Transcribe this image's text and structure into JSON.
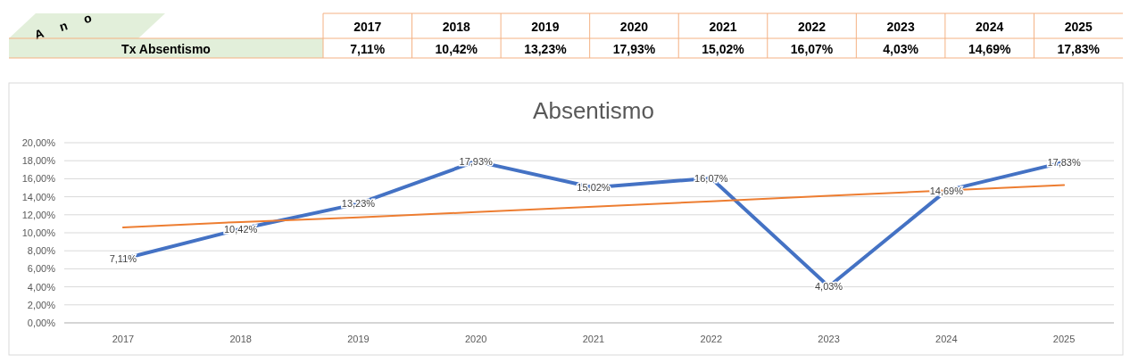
{
  "chart_data": {
    "type": "line",
    "title": "Absentismo",
    "categories": [
      "2017",
      "2018",
      "2019",
      "2020",
      "2021",
      "2022",
      "2023",
      "2024",
      "2025"
    ],
    "series": [
      {
        "name": "Tx Absentismo",
        "color": "#4472c4",
        "values": [
          7.11,
          10.42,
          13.23,
          17.93,
          15.02,
          16.07,
          4.03,
          14.69,
          17.83
        ],
        "value_labels": [
          "7,11%",
          "10,42%",
          "13,23%",
          "17,93%",
          "15,02%",
          "16,07%",
          "4,03%",
          "14,69%",
          "17,83%"
        ]
      },
      {
        "type": "line",
        "color": "#ed7d31",
        "values": [
          10.6,
          11.2,
          11.7,
          12.3,
          12.9,
          13.5,
          14.1,
          14.7,
          15.3
        ]
      }
    ],
    "ylim": [
      0,
      20
    ],
    "yticks": [
      {
        "value": 0,
        "label": "0,00%"
      },
      {
        "value": 2,
        "label": "2,00%"
      },
      {
        "value": 4,
        "label": "4,00%"
      },
      {
        "value": 6,
        "label": "6,00%"
      },
      {
        "value": 8,
        "label": "8,00%"
      },
      {
        "value": 10,
        "label": "10,00%"
      },
      {
        "value": 12,
        "label": "12,00%"
      },
      {
        "value": 14,
        "label": "14,00%"
      },
      {
        "value": 16,
        "label": "16,00%"
      },
      {
        "value": 18,
        "label": "18,00%"
      },
      {
        "value": 20,
        "label": "20,00%"
      }
    ],
    "grid": "y",
    "marker": "none",
    "line_style": "solid",
    "annotations": [
      "A n o"
    ]
  }
}
